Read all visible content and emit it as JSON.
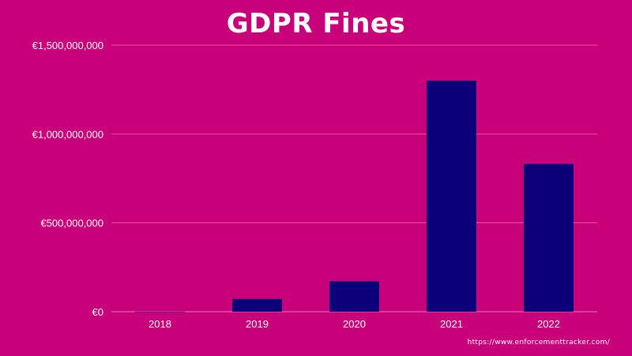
{
  "chart_data": {
    "type": "bar",
    "title": "GDPR Fines",
    "categories": [
      "2018",
      "2019",
      "2020",
      "2021",
      "2022"
    ],
    "values": [
      440000,
      72000000,
      171000000,
      1300000000,
      832000000
    ],
    "ylim": [
      0,
      1500000000
    ],
    "yticks": [
      0,
      500000000,
      1000000000,
      1500000000
    ],
    "ytick_labels": [
      "€0",
      "€500,000,000",
      "€1,000,000,000",
      "€1,500,000,000"
    ],
    "xlabel": "",
    "ylabel": "",
    "grid": true,
    "bar_color": "#0b0078",
    "background_color": "#c8007a"
  },
  "source": "https://www.enforcementtracker.com/"
}
